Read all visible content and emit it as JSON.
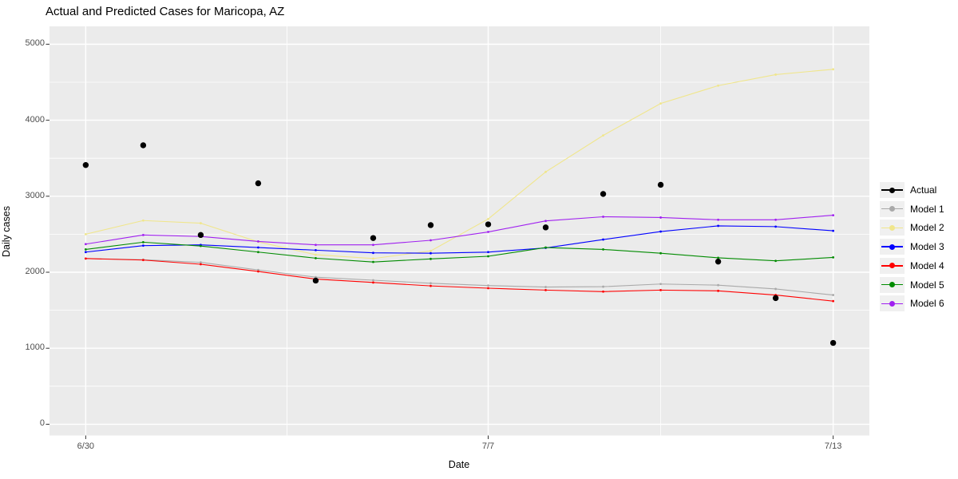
{
  "title": "Actual and Predicted Cases for Maricopa, AZ",
  "chart_data": {
    "type": "line",
    "title": "Actual and Predicted Cases for Maricopa, AZ",
    "xlabel": "Date",
    "ylabel": "Daily cases",
    "x_dates": [
      "6/30",
      "7/1",
      "7/2",
      "7/3",
      "7/4",
      "7/5",
      "7/6",
      "7/7",
      "7/8",
      "7/9",
      "7/10",
      "7/11",
      "7/12",
      "7/13"
    ],
    "x_major_ticks": {
      "labels": [
        "6/30",
        "7/7",
        "7/13"
      ],
      "day_index": [
        0,
        7,
        13
      ]
    },
    "x_minor_day_index": [
      3.5,
      10
    ],
    "y_major_ticks": [
      0,
      1000,
      2000,
      3000,
      4000,
      5000
    ],
    "y_minor_ticks": [
      500,
      1500,
      2500,
      3500,
      4500
    ],
    "xlim": [
      -0.63,
      13.63
    ],
    "ylim": [
      -148,
      5235
    ],
    "grid": true,
    "legend_position": "right",
    "panel_bg": "#EBEBEB",
    "grid_color": "#FFFFFF",
    "axis_text_color": "#4D4D4D",
    "tick_mark_color": "#333333",
    "series": [
      {
        "name": "Actual",
        "color": "#000000",
        "style": "points",
        "values": [
          3410,
          3670,
          2490,
          3170,
          1890,
          2450,
          2620,
          2630,
          2590,
          3030,
          3150,
          2140,
          1660,
          1070
        ]
      },
      {
        "name": "Model 1",
        "color": "#A9A9A9",
        "style": "line",
        "values": [
          2180,
          2165,
          2130,
          2030,
          1935,
          1895,
          1855,
          1825,
          1805,
          1810,
          1845,
          1830,
          1780,
          1700
        ]
      },
      {
        "name": "Model 2",
        "color": "#F0E68C",
        "style": "line",
        "values": [
          2500,
          2680,
          2645,
          2400,
          2230,
          2180,
          2280,
          2700,
          3320,
          3800,
          4220,
          4455,
          4600,
          4670
        ]
      },
      {
        "name": "Model 3",
        "color": "#0000FF",
        "style": "line",
        "values": [
          2265,
          2350,
          2360,
          2325,
          2290,
          2255,
          2250,
          2265,
          2320,
          2430,
          2535,
          2610,
          2600,
          2545
        ]
      },
      {
        "name": "Model 4",
        "color": "#FF0000",
        "style": "line",
        "values": [
          2180,
          2160,
          2105,
          2010,
          1910,
          1865,
          1820,
          1790,
          1765,
          1745,
          1765,
          1755,
          1700,
          1620
        ]
      },
      {
        "name": "Model 5",
        "color": "#008B00",
        "style": "line",
        "values": [
          2300,
          2395,
          2345,
          2265,
          2185,
          2135,
          2175,
          2210,
          2325,
          2300,
          2250,
          2190,
          2150,
          2195
        ]
      },
      {
        "name": "Model 6",
        "color": "#A020F0",
        "style": "line",
        "values": [
          2370,
          2490,
          2470,
          2405,
          2360,
          2360,
          2420,
          2530,
          2675,
          2730,
          2720,
          2690,
          2690,
          2750
        ]
      }
    ]
  }
}
